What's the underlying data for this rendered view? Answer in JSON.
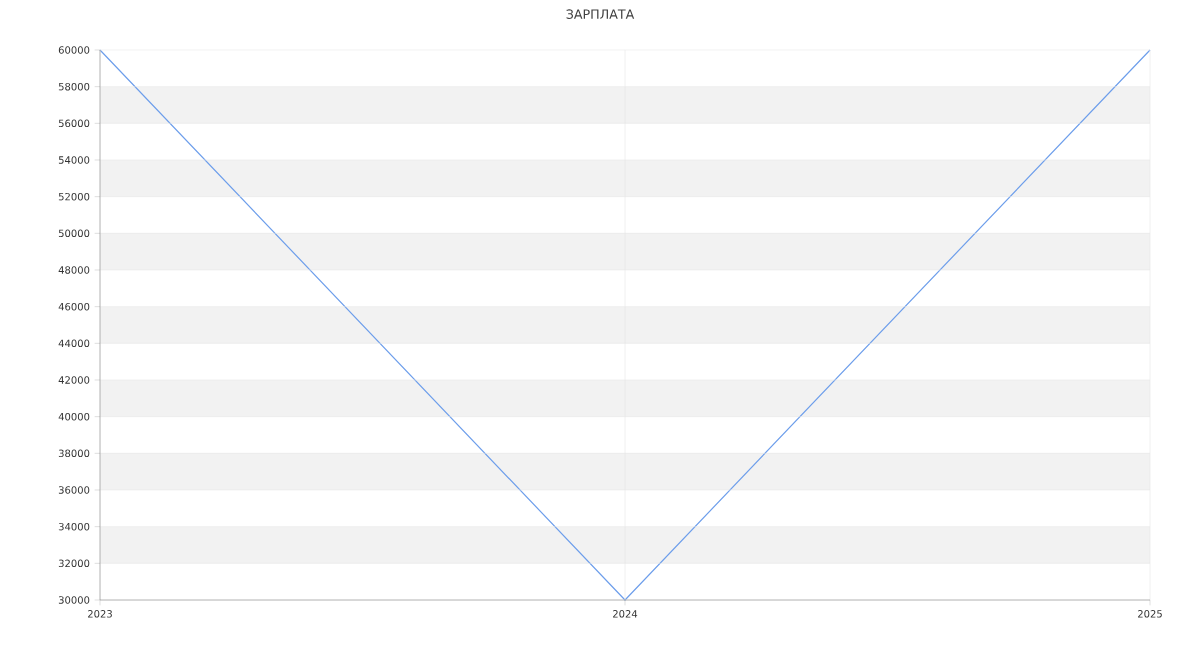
{
  "chart_data": {
    "type": "line",
    "title": "ЗАРПЛАТА",
    "categories": [
      "2023",
      "2024",
      "2025"
    ],
    "series": [
      {
        "color": "#6d9eeb",
        "values": [
          60000,
          30000,
          60000
        ]
      }
    ],
    "ylim": [
      30000,
      60000
    ],
    "yticks": [
      30000,
      32000,
      34000,
      36000,
      38000,
      40000,
      42000,
      44000,
      46000,
      48000,
      50000,
      52000,
      54000,
      56000,
      58000,
      60000
    ],
    "grid": true,
    "marker": "none",
    "line_style": "solid"
  }
}
